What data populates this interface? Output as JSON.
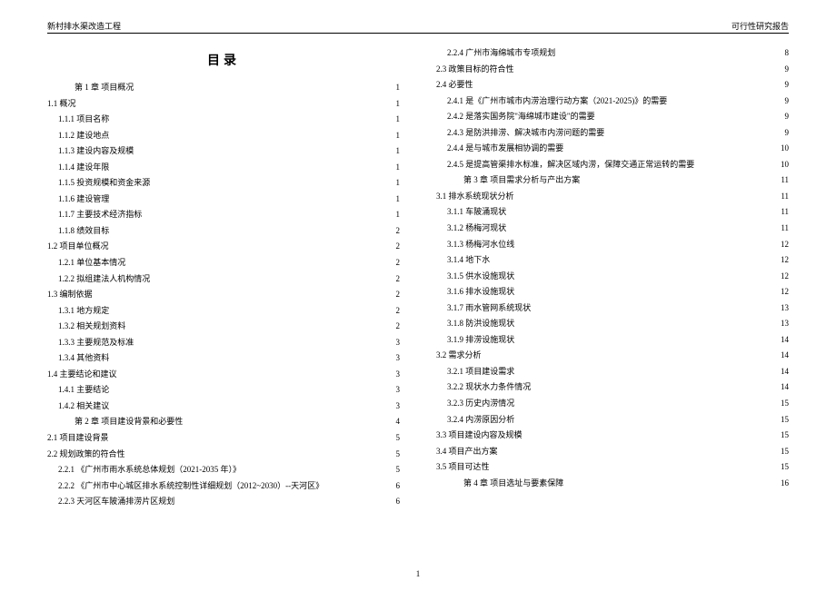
{
  "header": {
    "left": "新村排水渠改造工程",
    "right": "可行性研究报告"
  },
  "toc_title": "目录",
  "footer_page": "1",
  "left_col": [
    {
      "level": 0,
      "label": "第 1 章  项目概况",
      "page": "1"
    },
    {
      "level": 1,
      "label": "1.1 概况",
      "page": "1"
    },
    {
      "level": 2,
      "label": "1.1.1 项目名称",
      "page": "1"
    },
    {
      "level": 2,
      "label": "1.1.2 建设地点",
      "page": "1"
    },
    {
      "level": 2,
      "label": "1.1.3 建设内容及规模",
      "page": "1"
    },
    {
      "level": 2,
      "label": "1.1.4 建设年限",
      "page": "1"
    },
    {
      "level": 2,
      "label": "1.1.5 投资规模和资金来源",
      "page": "1"
    },
    {
      "level": 2,
      "label": "1.1.6 建设管理",
      "page": "1"
    },
    {
      "level": 2,
      "label": "1.1.7 主要技术经济指标",
      "page": "1"
    },
    {
      "level": 2,
      "label": "1.1.8 绩效目标",
      "page": "2"
    },
    {
      "level": 1,
      "label": "1.2 项目单位概况",
      "page": "2"
    },
    {
      "level": 2,
      "label": "1.2.1 单位基本情况",
      "page": "2"
    },
    {
      "level": 2,
      "label": "1.2.2 拟组建法人机构情况",
      "page": "2"
    },
    {
      "level": 1,
      "label": "1.3 编制依据",
      "page": "2"
    },
    {
      "level": 2,
      "label": "1.3.1 地方规定",
      "page": "2"
    },
    {
      "level": 2,
      "label": "1.3.2 相关规划资料",
      "page": "2"
    },
    {
      "level": 2,
      "label": "1.3.3 主要规范及标准",
      "page": "3"
    },
    {
      "level": 2,
      "label": "1.3.4 其他资料",
      "page": "3"
    },
    {
      "level": 1,
      "label": "1.4 主要结论和建议",
      "page": "3"
    },
    {
      "level": 2,
      "label": "1.4.1 主要结论",
      "page": "3"
    },
    {
      "level": 2,
      "label": "1.4.2 相关建议",
      "page": "3"
    },
    {
      "level": 0,
      "label": "第 2 章  项目建设背景和必要性",
      "page": "4"
    },
    {
      "level": 1,
      "label": "2.1 项目建设背景",
      "page": "5"
    },
    {
      "level": 1,
      "label": "2.2 规划政策的符合性",
      "page": "5"
    },
    {
      "level": 2,
      "label": "2.2.1 《广州市雨水系统总体规划（2021-2035 年）》",
      "page": "5"
    },
    {
      "level": 2,
      "label": "2.2.2 《广州市中心城区排水系统控制性详细规划（2012~2030）--天河区》",
      "page": "6"
    },
    {
      "level": 2,
      "label": "2.2.3 天河区车陂涌排涝片区规划",
      "page": "6"
    }
  ],
  "right_col": [
    {
      "level": 2,
      "label": "2.2.4 广州市海绵城市专项规划",
      "page": "8"
    },
    {
      "level": 1,
      "label": "2.3 政策目标的符合性",
      "page": "9"
    },
    {
      "level": 1,
      "label": "2.4 必要性",
      "page": "9"
    },
    {
      "level": 2,
      "label": "2.4.1 是《广州市城市内涝治理行动方案（2021-2025)》的需要",
      "page": "9"
    },
    {
      "level": 2,
      "label": "2.4.2 是落实国务院\"海绵城市建设\"的需要",
      "page": "9"
    },
    {
      "level": 2,
      "label": "2.4.3 是防洪排涝、解决城市内涝问题的需要",
      "page": "9"
    },
    {
      "level": 2,
      "label": "2.4.4 是与城市发展相协调的需要",
      "page": "10"
    },
    {
      "level": 2,
      "label": "2.4.5 是提高管渠排水标准，解决区域内涝，保障交通正常运转的需要",
      "page": "10"
    },
    {
      "level": 0,
      "label": "第 3 章  项目需求分析与产出方案",
      "page": "11"
    },
    {
      "level": 1,
      "label": "3.1 排水系统现状分析",
      "page": "11"
    },
    {
      "level": 2,
      "label": "3.1.1 车陂涌现状",
      "page": "11"
    },
    {
      "level": 2,
      "label": "3.1.2 杨梅河现状",
      "page": "11"
    },
    {
      "level": 2,
      "label": "3.1.3 杨梅河水位线",
      "page": "12"
    },
    {
      "level": 2,
      "label": "3.1.4 地下水",
      "page": "12"
    },
    {
      "level": 2,
      "label": "3.1.5 供水设施现状",
      "page": "12"
    },
    {
      "level": 2,
      "label": "3.1.6 排水设施现状",
      "page": "12"
    },
    {
      "level": 2,
      "label": "3.1.7 雨水管网系统现状",
      "page": "13"
    },
    {
      "level": 2,
      "label": "3.1.8 防洪设施现状",
      "page": "13"
    },
    {
      "level": 2,
      "label": "3.1.9 排涝设施现状",
      "page": "14"
    },
    {
      "level": 1,
      "label": "3.2 需求分析",
      "page": "14"
    },
    {
      "level": 2,
      "label": "3.2.1 项目建设需求",
      "page": "14"
    },
    {
      "level": 2,
      "label": "3.2.2 现状水力条件情况",
      "page": "14"
    },
    {
      "level": 2,
      "label": "3.2.3 历史内涝情况",
      "page": "15"
    },
    {
      "level": 2,
      "label": "3.2.4 内涝原因分析",
      "page": "15"
    },
    {
      "level": 1,
      "label": "3.3 项目建设内容及规模",
      "page": "15"
    },
    {
      "level": 1,
      "label": "3.4 项目产出方案",
      "page": "15"
    },
    {
      "level": 1,
      "label": "3.5 项目可达性",
      "page": "15"
    },
    {
      "level": 0,
      "label": "第 4 章  项目选址与要素保障",
      "page": "16"
    }
  ]
}
